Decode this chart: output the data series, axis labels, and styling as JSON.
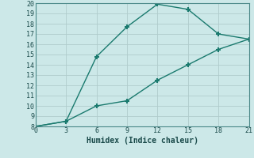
{
  "xlabel": "Humidex (Indice chaleur)",
  "line1_x": [
    0,
    3,
    6,
    9,
    12,
    15,
    18,
    21
  ],
  "line1_y": [
    8,
    8.5,
    10.0,
    10.5,
    12.5,
    14.0,
    15.5,
    16.5
  ],
  "line2_x": [
    0,
    3,
    6,
    9,
    12,
    15,
    18,
    21
  ],
  "line2_y": [
    8,
    8.5,
    14.8,
    17.7,
    19.9,
    19.4,
    17.0,
    16.5
  ],
  "line_color": "#1a7a6e",
  "bg_color": "#cce8e8",
  "grid_color": "#b0cccc",
  "xlim": [
    0,
    21
  ],
  "ylim": [
    8,
    20
  ],
  "xticks": [
    0,
    3,
    6,
    9,
    12,
    15,
    18,
    21
  ],
  "yticks": [
    8,
    9,
    10,
    11,
    12,
    13,
    14,
    15,
    16,
    17,
    18,
    19,
    20
  ],
  "marker": "+",
  "markersize": 5,
  "markeredgewidth": 1.5,
  "linewidth": 1.0,
  "xlabel_fontsize": 7,
  "tick_fontsize": 6
}
